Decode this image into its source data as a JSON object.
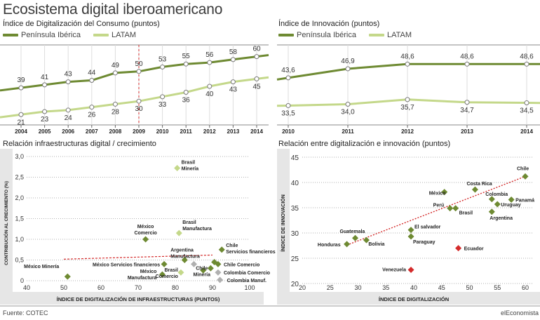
{
  "title": "Ecosistema digital iberoamericano",
  "footer": {
    "source": "Fuente: COTEC",
    "brand": "elEconomista"
  },
  "colors": {
    "dark": "#6e8a32",
    "light": "#c4d88a",
    "red": "#d42b2b",
    "gray": "#b0b0b0",
    "band": "#e6e6e6"
  },
  "chart_data": [
    {
      "type": "line",
      "title": "Índice de Digitalización del Consumo (puntos)",
      "legend": [
        "Península Ibérica",
        "LATAM"
      ],
      "x": [
        "2004",
        "2005",
        "2006",
        "2007",
        "2008",
        "2009",
        "2010",
        "2011",
        "2012",
        "2013",
        "2014"
      ],
      "series": [
        {
          "name": "Península Ibérica",
          "values": [
            39,
            41,
            43,
            44,
            49,
            50,
            53,
            55,
            56,
            58,
            60
          ],
          "labels": [
            "39",
            "41",
            "43",
            "44",
            "49",
            "50",
            "53",
            "55",
            "56",
            "58",
            "60"
          ]
        },
        {
          "name": "LATAM",
          "values": [
            21,
            23,
            24,
            26,
            28,
            30,
            33,
            36,
            40,
            43,
            45
          ],
          "labels": [
            "21",
            "23",
            "24",
            "26",
            "28",
            "30",
            "33",
            "36",
            "40",
            "43",
            "45"
          ]
        }
      ],
      "marker_year": "2009"
    },
    {
      "type": "line",
      "title": "Índice de Innovación (puntos)",
      "legend": [
        "Península Ibérica",
        "LATAM"
      ],
      "x": [
        "2010",
        "2011",
        "2012",
        "2013",
        "2014"
      ],
      "series": [
        {
          "name": "Península Ibérica",
          "values": [
            43.6,
            46.9,
            48.6,
            48.6,
            48.6
          ],
          "labels": [
            "43,6",
            "46,9",
            "48,6",
            "48,6",
            "48,6"
          ]
        },
        {
          "name": "LATAM",
          "values": [
            33.5,
            34.0,
            35.7,
            34.7,
            34.5
          ],
          "labels": [
            "33,5",
            "34,0",
            "35,7",
            "34,7",
            "34,5"
          ]
        }
      ]
    },
    {
      "type": "scatter",
      "title": "Relación infraestructuras digital / crecimiento",
      "xlabel": "ÍNDICE DE DIGITALIZACIÓN DE INFRAESTRUCTURAS (PUNTOS)",
      "ylabel": "CONTRIBUCIÓN AL CRECIMIENTO (%)",
      "xlim": [
        40,
        100
      ],
      "ylim": [
        0,
        3.0
      ],
      "x_ticks": [
        "40",
        "50",
        "60",
        "70",
        "80",
        "90",
        "100"
      ],
      "y_ticks": [
        "0",
        "0,5",
        "1,0",
        "1,5",
        "2,0",
        "2,5",
        "3,0"
      ],
      "points": [
        {
          "label": "México Minería",
          "x": 51,
          "y": 0.1,
          "color": "dark"
        },
        {
          "label": "Brasil Minería",
          "x": 80.5,
          "y": 2.72,
          "color": "light"
        },
        {
          "label": "México Comercio",
          "x": 72,
          "y": 1.0,
          "color": "dark"
        },
        {
          "label": "Brasil Manufactura",
          "x": 81,
          "y": 1.15,
          "color": "light"
        },
        {
          "label": "México Servicios financieros",
          "x": 77,
          "y": 0.4,
          "color": "dark"
        },
        {
          "label": "Argentina Manufactura",
          "x": 82.5,
          "y": 0.5,
          "color": "dark"
        },
        {
          "label": "Chile Servicios financieros",
          "x": 92.5,
          "y": 0.75,
          "color": "dark"
        },
        {
          "label": "México Manufactura",
          "x": 76.5,
          "y": 0.15,
          "color": "dark"
        },
        {
          "label": "Brasil Comercio",
          "x": 81.5,
          "y": 0.2,
          "color": "light"
        },
        {
          "label": "Chile Minería",
          "x": 87.5,
          "y": 0.25,
          "color": "dark"
        },
        {
          "label": "Chile Comercio",
          "x": 91.5,
          "y": 0.4,
          "color": "dark"
        },
        {
          "label": "Colombia Comercio",
          "x": 91.5,
          "y": 0.2,
          "color": "gray"
        },
        {
          "label": "Colombia Manuf.",
          "x": 92,
          "y": 0.02,
          "color": "gray"
        }
      ],
      "extra_points": [
        {
          "x": 85,
          "y": 0.4,
          "color": "gray"
        },
        {
          "x": 89.5,
          "y": 0.3,
          "color": "dark"
        },
        {
          "x": 90.5,
          "y": 0.45,
          "color": "dark"
        }
      ],
      "trend": [
        [
          50,
          0.52
        ],
        [
          90,
          0.62
        ]
      ]
    },
    {
      "type": "scatter",
      "title": "Relación entre digitalización e innovación (puntos)",
      "xlabel": "ÍNDICE DE DIGITALIZACIÓN",
      "ylabel": "ÍNDICE DE INNOVACIÓN",
      "xlim": [
        20,
        60
      ],
      "ylim": [
        20,
        45
      ],
      "x_ticks": [
        "20",
        "25",
        "30",
        "35",
        "40",
        "45",
        "50",
        "55",
        "60"
      ],
      "y_ticks": [
        "20",
        "25",
        "30",
        "35",
        "40",
        "45"
      ],
      "points": [
        {
          "label": "Chile",
          "x": 60,
          "y": 41.2,
          "color": "dark"
        },
        {
          "label": "Costa Rica",
          "x": 51,
          "y": 38.6,
          "color": "dark"
        },
        {
          "label": "México",
          "x": 45.5,
          "y": 38.1,
          "color": "dark"
        },
        {
          "label": "Colombia",
          "x": 54,
          "y": 36.7,
          "color": "dark"
        },
        {
          "label": "Panamá",
          "x": 57.5,
          "y": 36.6,
          "color": "dark"
        },
        {
          "label": "Uruguay",
          "x": 55,
          "y": 35.7,
          "color": "dark"
        },
        {
          "label": "Perú",
          "x": 46.5,
          "y": 34.9,
          "color": "dark"
        },
        {
          "label": "Brasil",
          "x": 47.5,
          "y": 34.9,
          "color": "dark"
        },
        {
          "label": "Argentina",
          "x": 54,
          "y": 34.2,
          "color": "dark"
        },
        {
          "label": "El salvador",
          "x": 39.5,
          "y": 30.6,
          "color": "dark"
        },
        {
          "label": "Guatemala",
          "x": 29.5,
          "y": 29.0,
          "color": "dark"
        },
        {
          "label": "Bolivia",
          "x": 31.5,
          "y": 28.6,
          "color": "dark"
        },
        {
          "label": "Honduras",
          "x": 28,
          "y": 27.8,
          "color": "dark"
        },
        {
          "label": "Paraguay",
          "x": 39.5,
          "y": 29.3,
          "color": "dark"
        },
        {
          "label": "Ecuador",
          "x": 48,
          "y": 27.0,
          "color": "red"
        },
        {
          "label": "Venezuela",
          "x": 39.5,
          "y": 22.7,
          "color": "red"
        }
      ],
      "trend": [
        [
          28,
          27.6
        ],
        [
          60,
          41.2
        ]
      ]
    }
  ]
}
